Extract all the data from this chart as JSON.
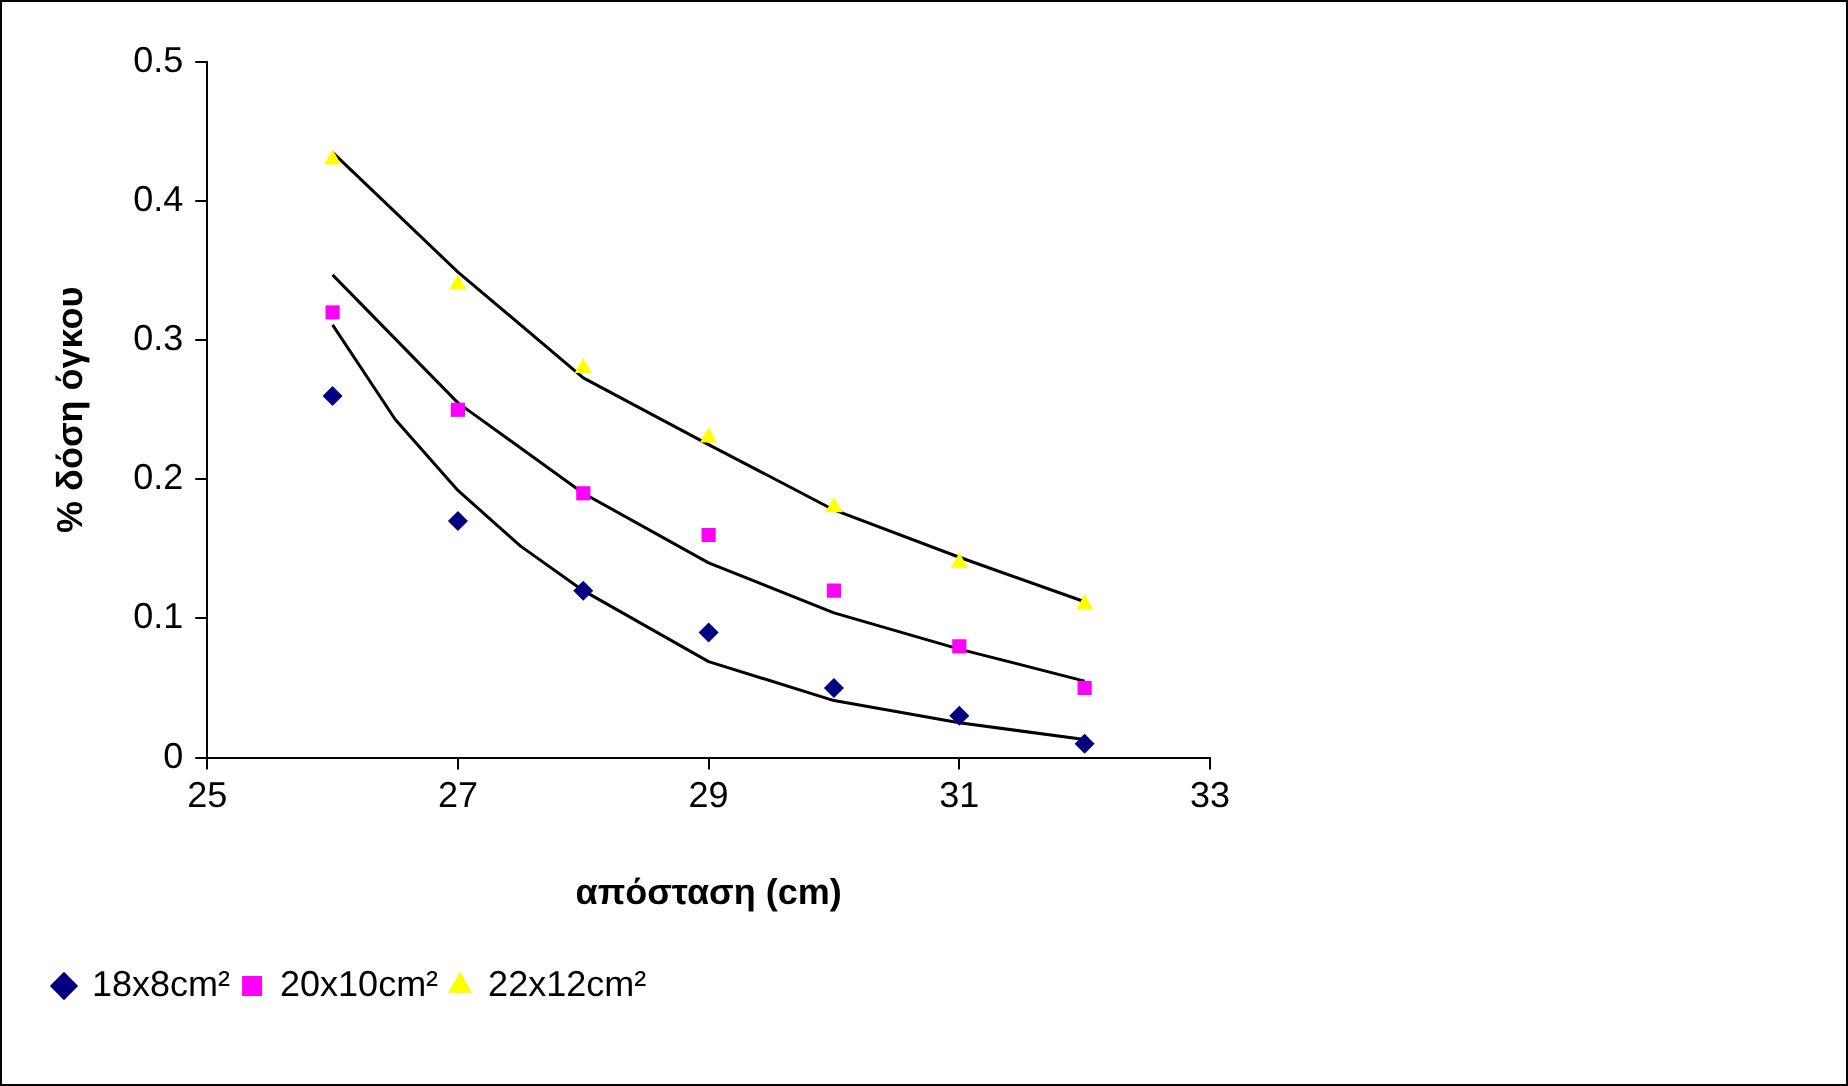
{
  "chart_data": {
    "type": "scatter",
    "xlabel": "απόσταση (cm)",
    "ylabel": "% δόση όγκου",
    "xlim": [
      25,
      33
    ],
    "xticks": [
      25,
      27,
      29,
      31,
      33
    ],
    "ylim": [
      0,
      0.5
    ],
    "yticks": [
      0,
      0.1,
      0.2,
      0.3,
      0.4,
      0.5
    ],
    "grid": false,
    "legend": "bottom",
    "series": [
      {
        "name": "18x8cm²",
        "color": "#000080",
        "marker": "diamond",
        "x": [
          26,
          27,
          28,
          29,
          30,
          31,
          32
        ],
        "values": [
          0.26,
          0.17,
          0.12,
          0.09,
          0.05,
          0.03,
          0.01
        ]
      },
      {
        "name": "20x10cm²",
        "color": "#ff00ff",
        "marker": "square",
        "x": [
          26,
          27,
          28,
          29,
          30,
          31,
          32
        ],
        "values": [
          0.32,
          0.25,
          0.19,
          0.16,
          0.12,
          0.08,
          0.05
        ]
      },
      {
        "name": "22x12cm²",
        "color": "#ffff00",
        "marker": "triangle",
        "x": [
          26,
          27,
          28,
          29,
          30,
          31,
          32
        ],
        "values": [
          0.43,
          0.34,
          0.28,
          0.23,
          0.18,
          0.14,
          0.11
        ]
      },
      {
        "type": "line",
        "color": "#000000",
        "marker": "none",
        "x": [
          26,
          26.5,
          27,
          27.5,
          28,
          29,
          30,
          31,
          32
        ],
        "values": [
          0.311,
          0.243,
          0.192,
          0.152,
          0.12,
          0.069,
          0.041,
          0.025,
          0.013
        ]
      },
      {
        "type": "line",
        "color": "#000000",
        "marker": "none",
        "x": [
          26,
          27,
          28,
          29,
          30,
          31,
          32
        ],
        "values": [
          0.347,
          0.255,
          0.19,
          0.14,
          0.104,
          0.078,
          0.055
        ]
      },
      {
        "type": "line",
        "color": "#000000",
        "marker": "none",
        "x": [
          26,
          27,
          28,
          29,
          30,
          31,
          32
        ],
        "values": [
          0.435,
          0.349,
          0.273,
          0.225,
          0.178,
          0.144,
          0.112
        ]
      }
    ]
  }
}
